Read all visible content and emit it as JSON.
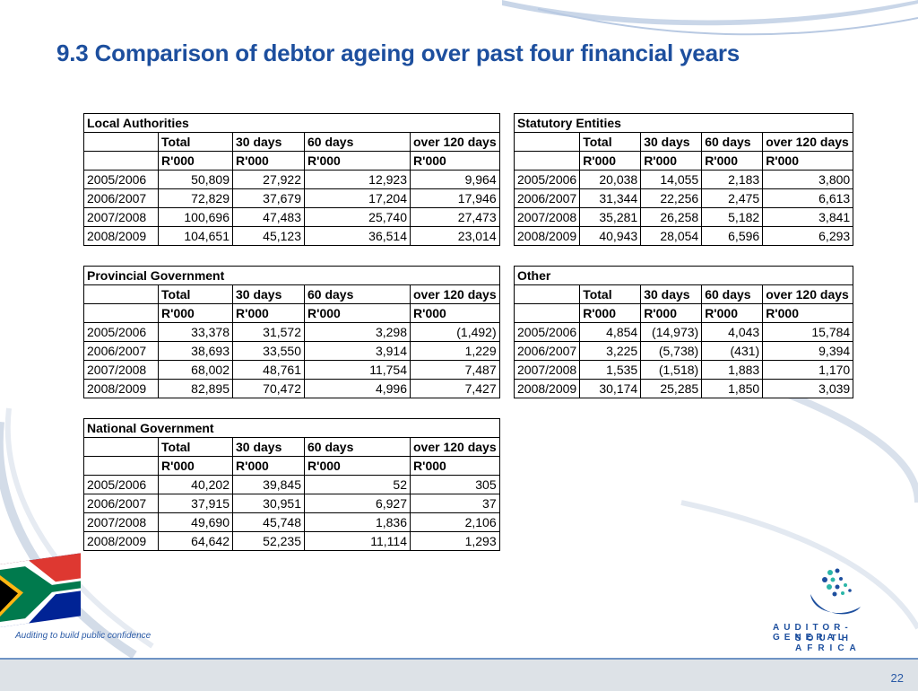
{
  "title": "9.3 Comparison of debtor ageing over past four financial years",
  "column_headers": [
    "Total",
    "30 days",
    "60 days",
    "over 120 days"
  ],
  "unit_label": "R'000",
  "tables": {
    "local_authorities": {
      "name": "Local Authorities",
      "rows": [
        [
          "2005/2006",
          "50,809",
          "27,922",
          "12,923",
          "9,964"
        ],
        [
          "2006/2007",
          "72,829",
          "37,679",
          "17,204",
          "17,946"
        ],
        [
          "2007/2008",
          "100,696",
          "47,483",
          "25,740",
          "27,473"
        ],
        [
          "2008/2009",
          "104,651",
          "45,123",
          "36,514",
          "23,014"
        ]
      ]
    },
    "provincial_government": {
      "name": "Provincial Government",
      "rows": [
        [
          "2005/2006",
          "33,378",
          "31,572",
          "3,298",
          "(1,492)"
        ],
        [
          "2006/2007",
          "38,693",
          "33,550",
          "3,914",
          "1,229"
        ],
        [
          "2007/2008",
          "68,002",
          "48,761",
          "11,754",
          "7,487"
        ],
        [
          "2008/2009",
          "82,895",
          "70,472",
          "4,996",
          "7,427"
        ]
      ]
    },
    "national_government": {
      "name": "National Government",
      "rows": [
        [
          "2005/2006",
          "40,202",
          "39,845",
          "52",
          "305"
        ],
        [
          "2006/2007",
          "37,915",
          "30,951",
          "6,927",
          "37"
        ],
        [
          "2007/2008",
          "49,690",
          "45,748",
          "1,836",
          "2,106"
        ],
        [
          "2008/2009",
          "64,642",
          "52,235",
          "11,114",
          "1,293"
        ]
      ]
    },
    "statutory_entities": {
      "name": "Statutory Entities",
      "rows": [
        [
          "2005/2006",
          "20,038",
          "14,055",
          "2,183",
          "3,800"
        ],
        [
          "2006/2007",
          "31,344",
          "22,256",
          "2,475",
          "6,613"
        ],
        [
          "2007/2008",
          "35,281",
          "26,258",
          "5,182",
          "3,841"
        ],
        [
          "2008/2009",
          "40,943",
          "28,054",
          "6,596",
          "6,293"
        ]
      ]
    },
    "other": {
      "name": "Other",
      "rows": [
        [
          "2005/2006",
          "4,854",
          "(14,973)",
          "4,043",
          "15,784"
        ],
        [
          "2006/2007",
          "3,225",
          "(5,738)",
          "(431)",
          "9,394"
        ],
        [
          "2007/2008",
          "1,535",
          "(1,518)",
          "1,883",
          "1,170"
        ],
        [
          "2008/2009",
          "30,174",
          "25,285",
          "1,850",
          "3,039"
        ]
      ]
    }
  },
  "footer": {
    "tagline": "Auditing to build public confidence",
    "logo_line1": "AUDITOR-GENERAL",
    "logo_line2": "SOUTH AFRICA",
    "page_number": "22"
  },
  "colors": {
    "title": "#1d4f9e",
    "footer_band": "#dde2e7",
    "footer_rule": "#6f93c4"
  },
  "icons": [
    "south-africa-flag-icon",
    "auditor-general-logo-icon"
  ]
}
